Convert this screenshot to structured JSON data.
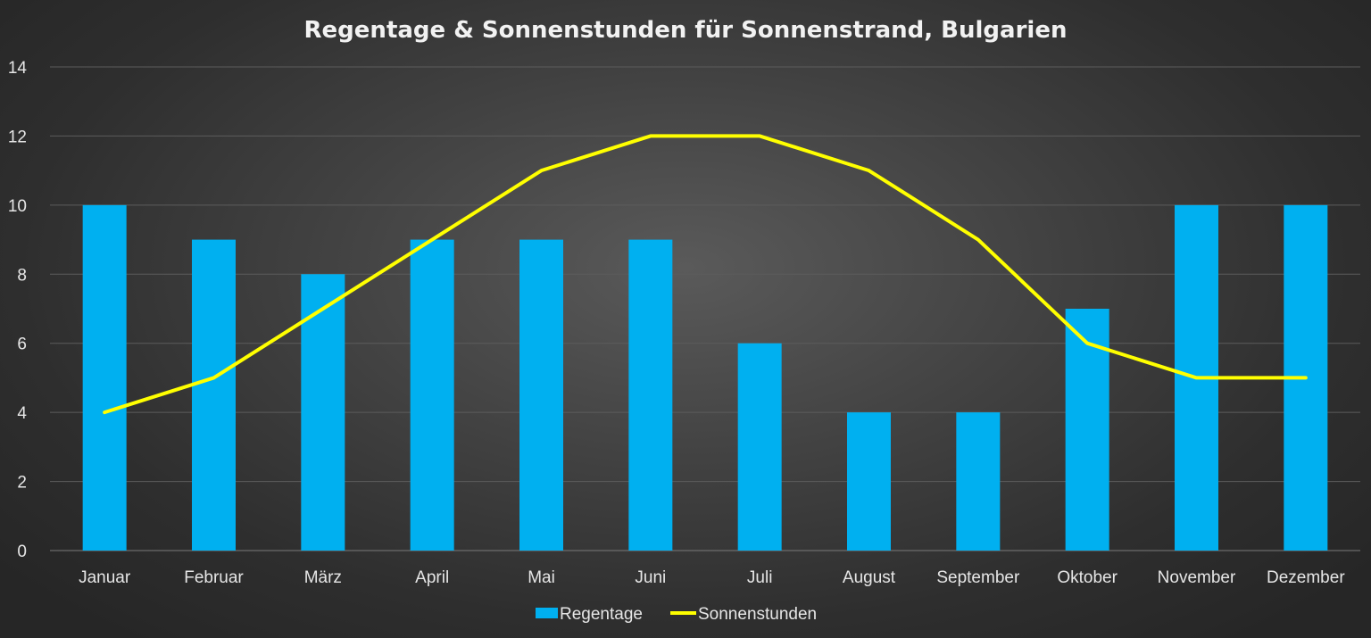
{
  "chart_data": {
    "type": "bar",
    "title": "Regentage & Sonnenstunden für Sonnenstrand, Bulgarien",
    "categories": [
      "Januar",
      "Februar",
      "März",
      "April",
      "Mai",
      "Juni",
      "Juli",
      "August",
      "September",
      "Oktober",
      "November",
      "Dezember"
    ],
    "series": [
      {
        "name": "Regentage",
        "type": "bar",
        "color": "#00b0f0",
        "values": [
          10,
          9,
          8,
          9,
          9,
          9,
          6,
          4,
          4,
          7,
          10,
          10
        ]
      },
      {
        "name": "Sonnenstunden",
        "type": "line",
        "color": "#ffff00",
        "values": [
          4,
          5,
          7,
          9,
          11,
          12,
          12,
          11,
          9,
          6,
          5,
          5
        ]
      }
    ],
    "ylim": [
      0,
      14
    ],
    "yticks": [
      0,
      2,
      4,
      6,
      8,
      10,
      12,
      14
    ],
    "xlabel": "",
    "ylabel": "",
    "grid": true,
    "legend_position": "bottom"
  }
}
